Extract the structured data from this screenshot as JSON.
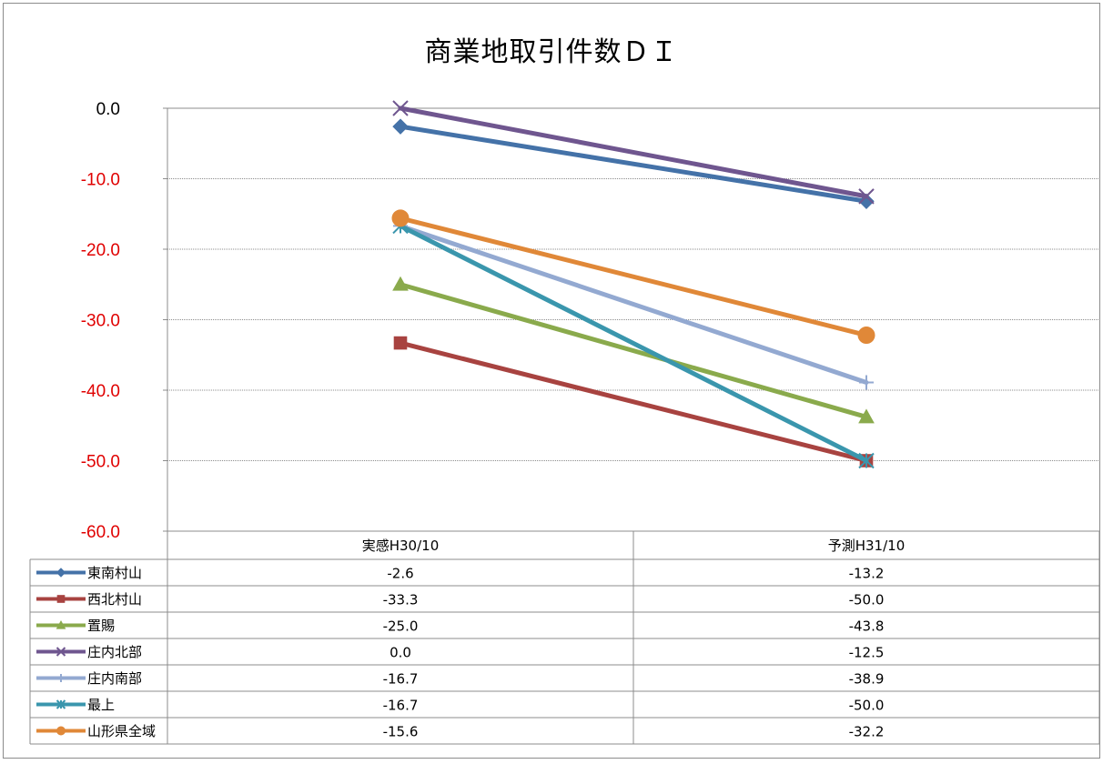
{
  "chart_data": {
    "type": "line",
    "title": "商業地取引件数ＤＩ",
    "categories": [
      "実感H30/10",
      "予測H31/10"
    ],
    "ylim": [
      -60,
      0
    ],
    "yticks": [
      "0.0",
      "-10.0",
      "-20.0",
      "-30.0",
      "-40.0",
      "-50.0",
      "-60.0"
    ],
    "grid": true,
    "legend": "data-table",
    "series": [
      {
        "name": "東南村山",
        "values": [
          -2.6,
          -13.2
        ],
        "labels": [
          "-2.6",
          "-13.2"
        ],
        "color": "#4472a8",
        "marker": "diamond"
      },
      {
        "name": "西北村山",
        "values": [
          -33.3,
          -50.0
        ],
        "labels": [
          "-33.3",
          "-50.0"
        ],
        "color": "#a84340",
        "marker": "square"
      },
      {
        "name": "置賜",
        "values": [
          -25.0,
          -43.8
        ],
        "labels": [
          "-25.0",
          "-43.8"
        ],
        "color": "#8aaa4c",
        "marker": "triangle"
      },
      {
        "name": "庄内北部",
        "values": [
          0.0,
          -12.5
        ],
        "labels": [
          "0.0",
          "-12.5"
        ],
        "color": "#6f568f",
        "marker": "x"
      },
      {
        "name": "庄内南部",
        "values": [
          -16.7,
          -38.9
        ],
        "labels": [
          "-16.7",
          "-38.9"
        ],
        "color": "#93a9d1",
        "marker": "plus"
      },
      {
        "name": "最上",
        "values": [
          -16.7,
          -50.0
        ],
        "labels": [
          "-16.7",
          "-50.0"
        ],
        "color": "#3a96ad",
        "marker": "star"
      },
      {
        "name": "山形県全域",
        "values": [
          -15.6,
          -32.2
        ],
        "labels": [
          "-15.6",
          "-32.2"
        ],
        "color": "#e08838",
        "marker": "circle"
      }
    ],
    "colors": {
      "axis_zero_label": "#000000",
      "axis_negative_label": "#e00000",
      "gridline": "#8c8c8c"
    }
  }
}
